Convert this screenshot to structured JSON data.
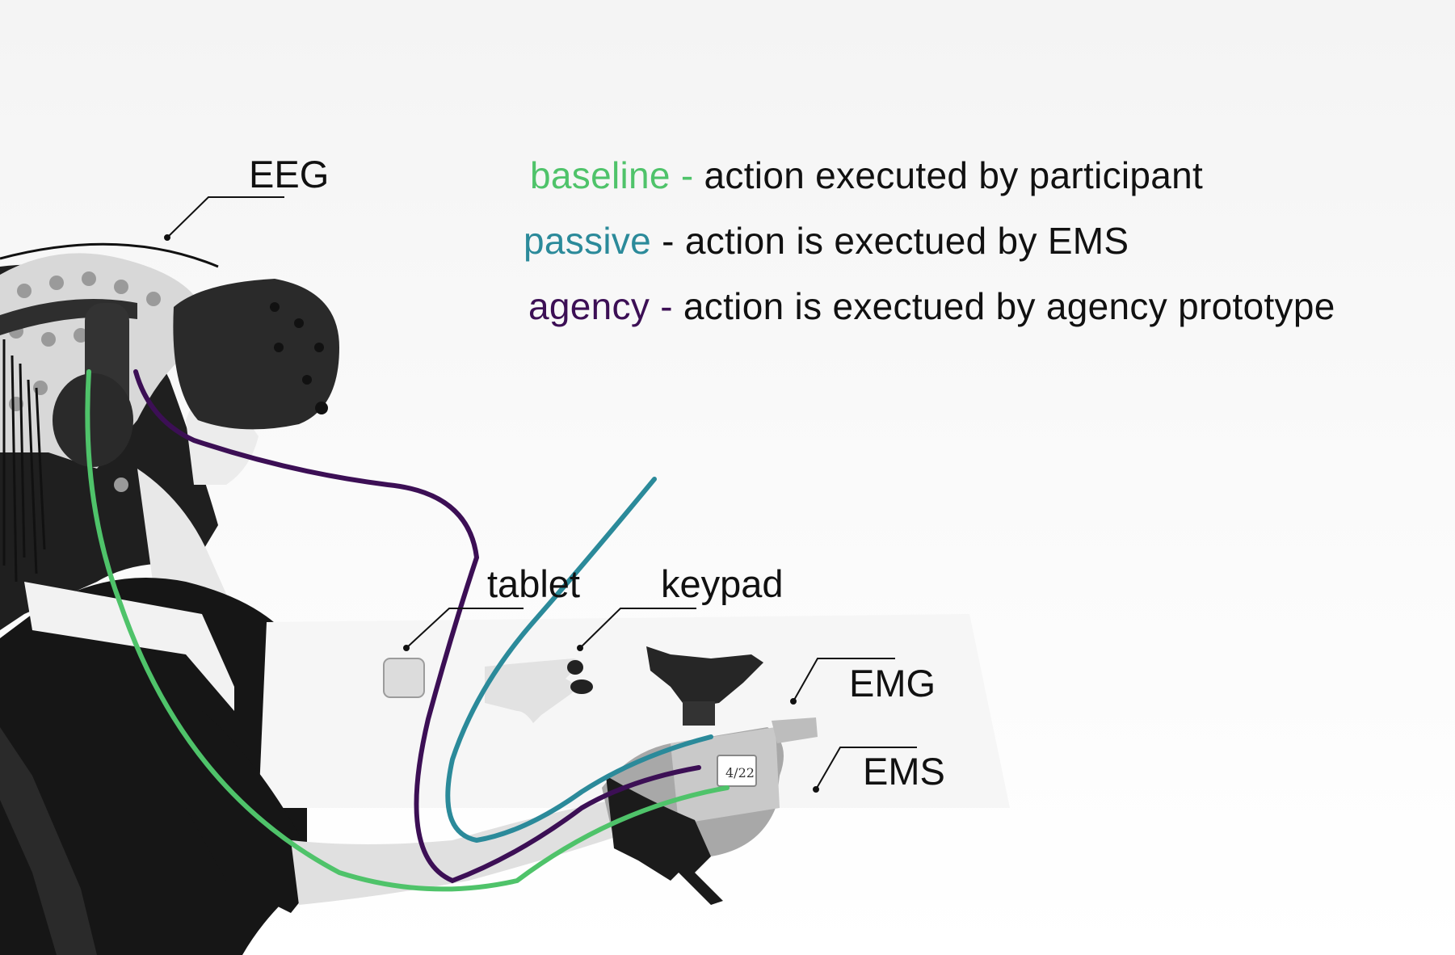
{
  "legend": [
    {
      "term": "baseline -",
      "description": " action executed by participant",
      "color": "#4fc36a"
    },
    {
      "term": "passive",
      "description": " - action is exectued by EMS",
      "color": "#2b8a9a"
    },
    {
      "term": "agency -",
      "description": " action is exectued by agency prototype",
      "color": "#3c0f55"
    }
  ],
  "labels": {
    "eeg": "EEG",
    "tablet": "tablet",
    "keypad": "keypad",
    "emg": "EMG",
    "ems": "EMS"
  },
  "device_sticker": "4/22",
  "colors": {
    "baseline": "#4fc36a",
    "passive": "#2b8a9a",
    "agency": "#3c0f55",
    "text": "#111111"
  }
}
